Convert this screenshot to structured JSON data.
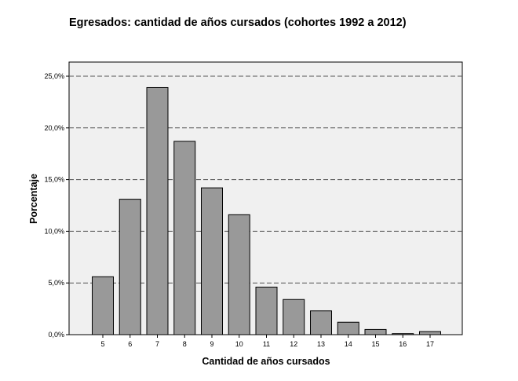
{
  "chart_data": {
    "type": "bar",
    "title": "Egresados: cantidad de años cursados (cohortes 1992 a 2012)",
    "xlabel": "Cantidad de años cursados",
    "ylabel": "Porcentaje",
    "categories": [
      "5",
      "6",
      "7",
      "8",
      "9",
      "10",
      "11",
      "12",
      "13",
      "14",
      "15",
      "16",
      "17"
    ],
    "values": [
      5.6,
      13.1,
      23.9,
      18.7,
      14.2,
      11.6,
      4.6,
      3.4,
      2.3,
      1.2,
      0.5,
      0.1,
      0.3
    ],
    "ylim": [
      0,
      25
    ],
    "yticks": [
      0,
      5,
      10,
      15,
      20,
      25
    ],
    "ytick_labels": [
      "0,0%",
      "5,0%",
      "10,0%",
      "15,0%",
      "20,0%",
      "25,0%"
    ],
    "grid": "horizontal dashed",
    "bar_color": "#999999",
    "plot_background": "#f0f0f0"
  }
}
